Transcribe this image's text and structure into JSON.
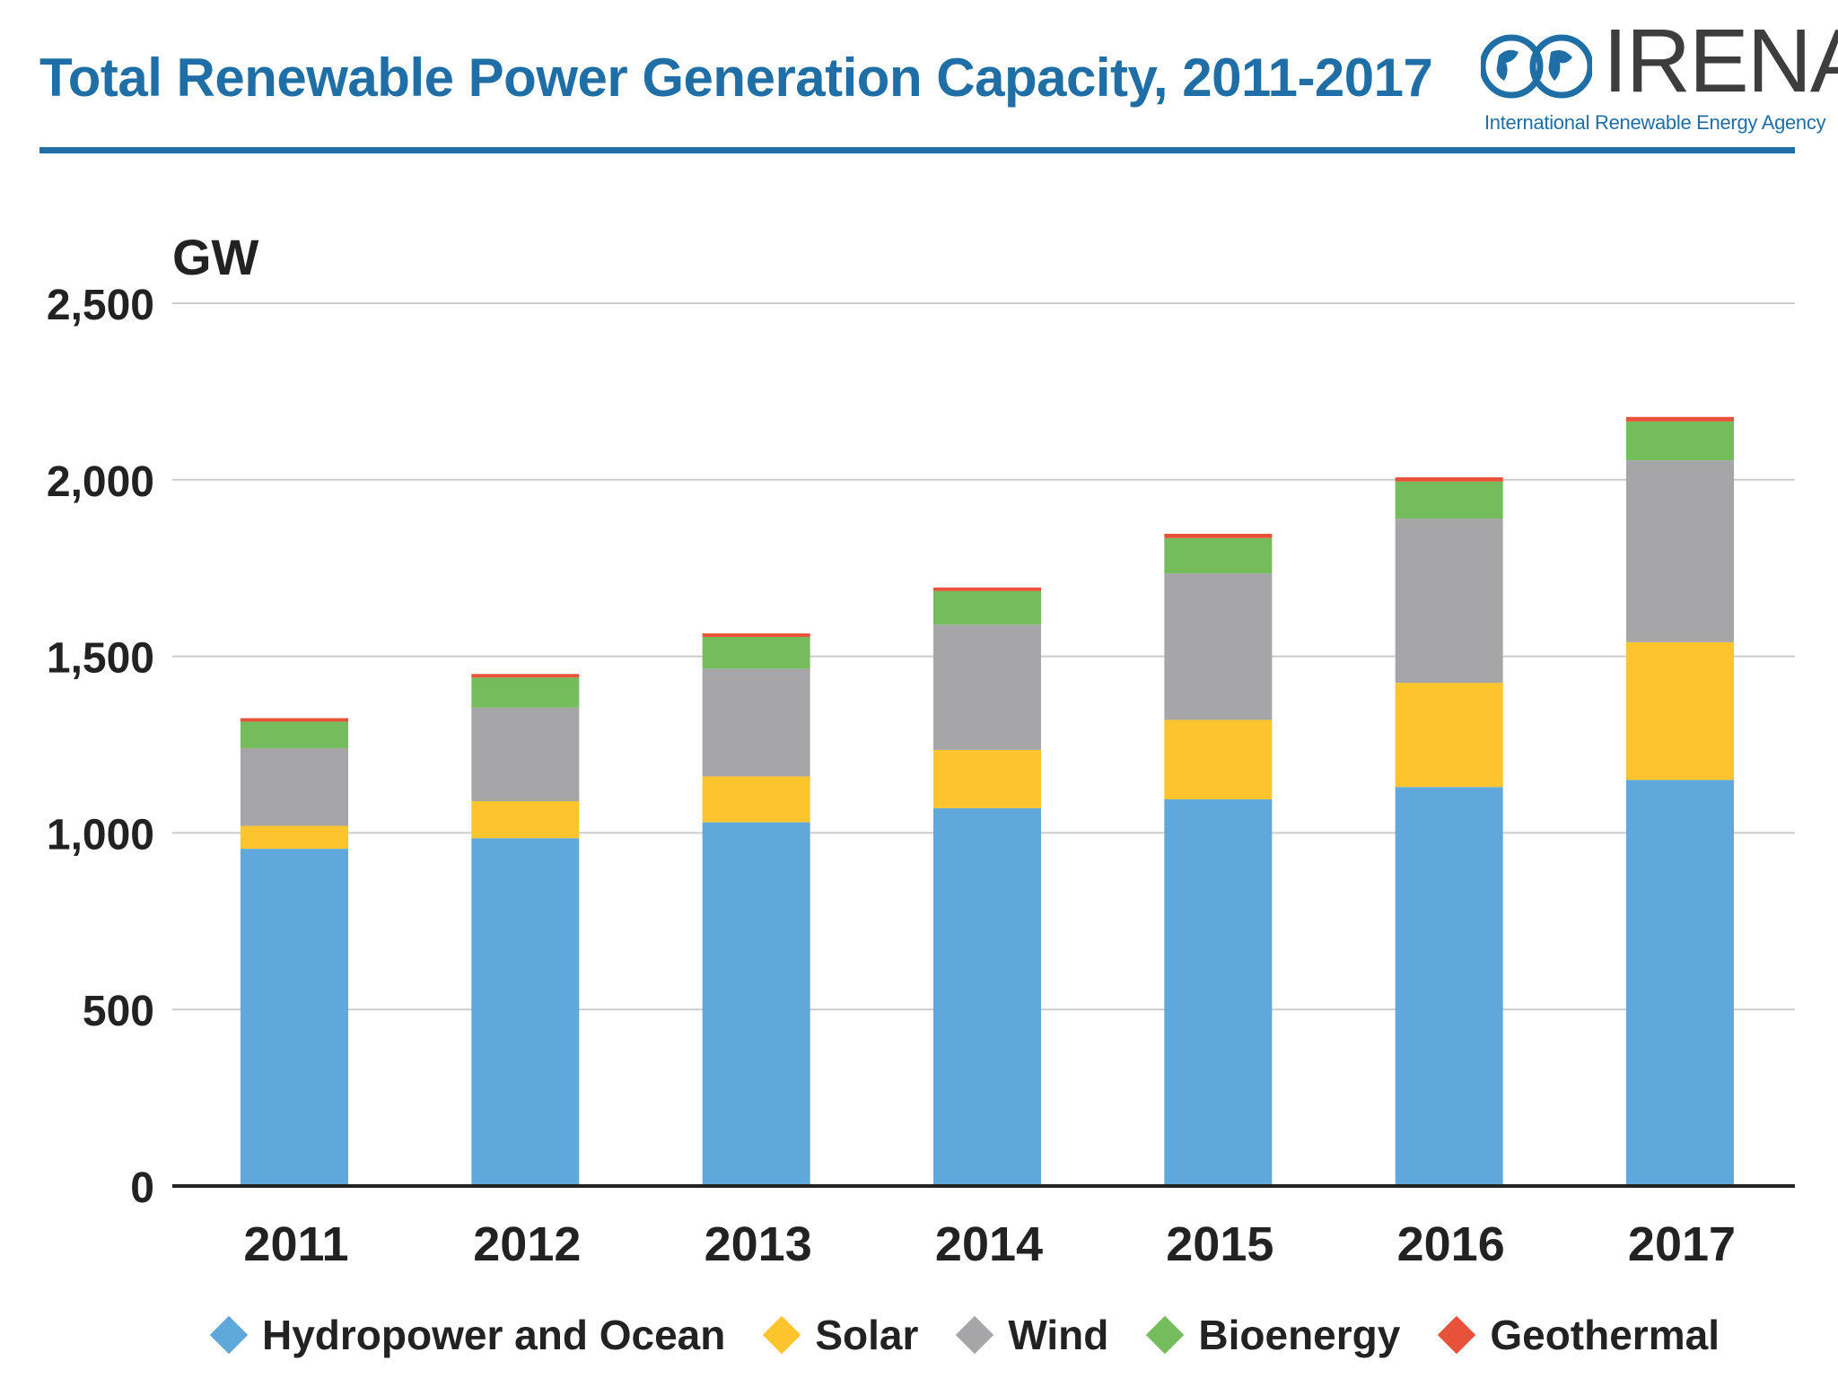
{
  "header": {
    "title": "Total Renewable Power Generation Capacity, 2011-2017"
  },
  "logo": {
    "name": "IRENA",
    "subtitle": "International Renewable Energy Agency",
    "icon": "globe-infinity-icon"
  },
  "colors": {
    "title": "#1f6fa6",
    "hydro": "#5fa8db",
    "solar": "#fcc52d",
    "wind": "#a6a6a8",
    "bioenergy": "#74bc5c",
    "geothermal": "#e8523a",
    "grid": "#cccccc",
    "axis": "#222222"
  },
  "chart_data": {
    "type": "bar",
    "stacked": true,
    "title": "Total Renewable Power Generation Capacity, 2011-2017",
    "ylabel": "GW",
    "xlabel": "",
    "ylim": [
      0,
      2500
    ],
    "yticks": [
      0,
      500,
      1000,
      1500,
      2000,
      2500
    ],
    "ytick_labels": [
      "0",
      "500",
      "1,000",
      "1,500",
      "2,000",
      "2,500"
    ],
    "grid": true,
    "legend_position": "bottom",
    "categories": [
      "2011",
      "2012",
      "2013",
      "2014",
      "2015",
      "2016",
      "2017"
    ],
    "series": [
      {
        "name": "Hydropower and Ocean",
        "color": "#5fa8db",
        "values": [
          955,
          985,
          1030,
          1070,
          1095,
          1130,
          1150
        ]
      },
      {
        "name": "Solar",
        "color": "#fcc52d",
        "values": [
          65,
          105,
          130,
          165,
          225,
          295,
          390
        ]
      },
      {
        "name": "Wind",
        "color": "#a6a6a8",
        "values": [
          220,
          265,
          305,
          355,
          415,
          465,
          515
        ]
      },
      {
        "name": "Bioenergy",
        "color": "#74bc5c",
        "values": [
          75,
          85,
          90,
          95,
          100,
          105,
          110
        ]
      },
      {
        "name": "Geothermal",
        "color": "#e8523a",
        "values": [
          10,
          10,
          10,
          10,
          12,
          12,
          13
        ]
      }
    ]
  }
}
